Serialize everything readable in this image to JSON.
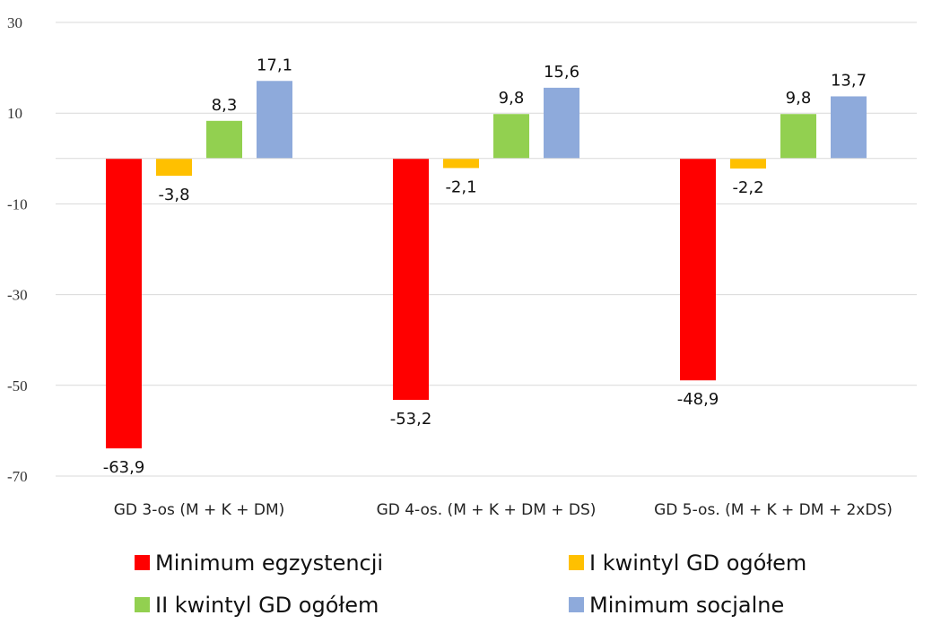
{
  "chart_data": {
    "type": "bar",
    "title": "",
    "xlabel": "",
    "ylabel": "",
    "ylim": [
      -70,
      30
    ],
    "yticks": [
      30,
      10,
      -10,
      -30,
      -50,
      -70
    ],
    "grid": true,
    "legend_position": "bottom",
    "categories": [
      "GD 3-os (M + K + DM)",
      "GD 4-os. (M + K + DM + DS)",
      "GD 5-os. (M + K + DM + 2xDS)"
    ],
    "series": [
      {
        "name": "Minimum egzystencji",
        "color": "#ff0000",
        "values": [
          -63.9,
          -53.2,
          -48.9
        ],
        "labels": [
          "-63,9",
          "-53,2",
          "-48,9"
        ]
      },
      {
        "name": "I kwintyl GD ogółem",
        "color": "#ffc000",
        "values": [
          -3.8,
          -2.1,
          -2.2
        ],
        "labels": [
          "-3,8",
          "-2,1",
          "-2,2"
        ]
      },
      {
        "name": "II kwintyl GD ogółem",
        "color": "#92d050",
        "values": [
          8.3,
          9.8,
          9.8
        ],
        "labels": [
          "8,3",
          "9,8",
          "9,8"
        ]
      },
      {
        "name": "Minimum socjalne",
        "color": "#8eaadb",
        "values": [
          17.1,
          15.6,
          13.7
        ],
        "labels": [
          "17,1",
          "15,6",
          "13,7"
        ]
      }
    ]
  }
}
